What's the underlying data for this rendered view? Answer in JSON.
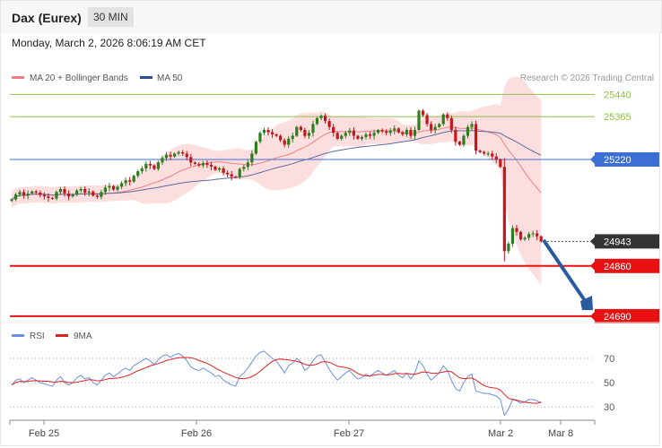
{
  "header": {
    "title": "Dax (Eurex)",
    "timeframe": "30 MIN",
    "datetime": "Monday, March 2, 2026 8:06:19 AM CET"
  },
  "legend": {
    "ma20": "MA 20 + Bollinger Bands",
    "ma50": "MA 50",
    "copyright": "Research © 2026 Trading Central",
    "rsi": "RSI",
    "rsi_ma": "9MA"
  },
  "colors": {
    "candle_up": "#2e7d1f",
    "candle_down": "#c2171d",
    "bollinger_fill": "#fbd3d3",
    "ma20": "#f08080",
    "ma50": "#5a6aa0",
    "resistance": "#8fbf4a",
    "pivot": "#3b6fd6",
    "support": "#e81010",
    "arrow": "#2a5aa0",
    "rsi": "#6b8fe0",
    "rsi_ma": "#e02020"
  },
  "chart_data": {
    "type": "candlestick",
    "x_labels": [
      "Feb 25",
      "Feb 26",
      "Feb 27",
      "Mar 2",
      "Mar 8"
    ],
    "levels": [
      {
        "label": "25440",
        "value": 25440,
        "kind": "resistance"
      },
      {
        "label": "25365",
        "value": 25365,
        "kind": "resistance"
      },
      {
        "label": "25220",
        "value": 25220,
        "kind": "pivot"
      },
      {
        "label": "24943",
        "value": 24943,
        "kind": "last"
      },
      {
        "label": "24860",
        "value": 24860,
        "kind": "support"
      },
      {
        "label": "24690",
        "value": 24690,
        "kind": "support"
      }
    ],
    "rsi_levels": [
      {
        "label": "70",
        "value": 70
      },
      {
        "label": "50",
        "value": 50
      },
      {
        "label": "30",
        "value": 30
      }
    ],
    "close": [
      25085,
      25102,
      25110,
      25098,
      25105,
      25112,
      25108,
      25100,
      25095,
      25090,
      25088,
      25110,
      25120,
      25105,
      25095,
      25102,
      25115,
      25120,
      25108,
      25112,
      25098,
      25094,
      25110,
      25125,
      25130,
      25118,
      25128,
      25140,
      25150,
      25145,
      25165,
      25180,
      25190,
      25205,
      25200,
      25188,
      25210,
      25225,
      25236,
      25230,
      25240,
      25245,
      25240,
      25228,
      25210,
      25205,
      25200,
      25208,
      25202,
      25196,
      25185,
      25190,
      25175,
      25170,
      25162,
      25160,
      25188,
      25195,
      25210,
      25240,
      25280,
      25310,
      25320,
      25312,
      25305,
      25300,
      25285,
      25270,
      25290,
      25300,
      25330,
      25320,
      25300,
      25310,
      25340,
      25360,
      25368,
      25350,
      25330,
      25310,
      25290,
      25300,
      25310,
      25318,
      25300,
      25290,
      25296,
      25305,
      25300,
      25310,
      25320,
      25315,
      25310,
      25318,
      25325,
      25312,
      25305,
      25320,
      25300,
      25320,
      25385,
      25370,
      25340,
      25320,
      25330,
      25340,
      25372,
      25360,
      25320,
      25280,
      25270,
      25300,
      25330,
      25340,
      25250,
      25245,
      25240,
      25240,
      25230,
      25220,
      25195,
      24910,
      24935,
      24988,
      24975,
      24950,
      24955,
      24968,
      24970,
      24960,
      24943
    ],
    "rsi": [
      48,
      52,
      53,
      50,
      52,
      54,
      52,
      50,
      49,
      48,
      47,
      52,
      55,
      50,
      48,
      50,
      54,
      56,
      53,
      54,
      50,
      48,
      52,
      56,
      58,
      55,
      57,
      60,
      62,
      60,
      64,
      66,
      68,
      70,
      68,
      65,
      69,
      72,
      73,
      71,
      73,
      74,
      72,
      68,
      63,
      61,
      60,
      62,
      60,
      58,
      55,
      56,
      52,
      50,
      48,
      47,
      55,
      58,
      62,
      67,
      72,
      75,
      76,
      73,
      70,
      68,
      63,
      58,
      64,
      66,
      70,
      67,
      60,
      63,
      68,
      72,
      73,
      67,
      61,
      56,
      52,
      55,
      58,
      60,
      56,
      53,
      54,
      57,
      55,
      58,
      60,
      58,
      56,
      58,
      60,
      56,
      54,
      58,
      53,
      58,
      68,
      64,
      57,
      52,
      55,
      58,
      64,
      60,
      52,
      45,
      43,
      50,
      55,
      57,
      43,
      42,
      41,
      41,
      40,
      39,
      36,
      23,
      28,
      36,
      35,
      33,
      34,
      36,
      36,
      35,
      33
    ]
  }
}
